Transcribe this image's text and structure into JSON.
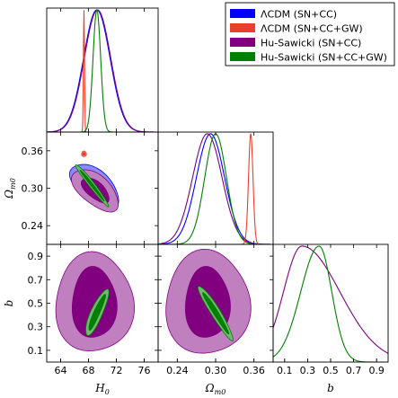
{
  "chart_data": {
    "type": "corner-plot",
    "legend": [
      {
        "label": "ΛCDM (SN+CC)",
        "color": "#0000ff"
      },
      {
        "label": "ΛCDM (SN+CC+GW)",
        "color": "#e8402a"
      },
      {
        "label": "Hu-Sawicki (SN+CC)",
        "color": "#800080"
      },
      {
        "label": "Hu-Sawicki (SN+CC+GW)",
        "color": "#008000"
      }
    ],
    "parameters": [
      {
        "name": "H0",
        "label_main": "H",
        "label_sub": "0",
        "range": [
          62,
          78
        ],
        "ticks": [
          64,
          68,
          72,
          76
        ]
      },
      {
        "name": "Omega_m0",
        "label_main": "Ω",
        "label_sub": "m0",
        "range": [
          0.21,
          0.39
        ],
        "ticks": [
          0.24,
          0.3,
          0.36
        ],
        "tick_labels": [
          "0.24",
          "0.30",
          "0.36"
        ]
      },
      {
        "name": "b",
        "label_main": "b",
        "label_sub": "",
        "range": [
          0.0,
          1.0
        ],
        "ticks": [
          0.1,
          0.3,
          0.5,
          0.7,
          0.9
        ],
        "tick_labels": [
          "0.1",
          "0.3",
          "0.5",
          "0.7",
          "0.9"
        ]
      }
    ],
    "marginals": {
      "H0": [
        {
          "series": "ΛCDM (SN+CC)",
          "color": "#0000ff",
          "mean": 69.2,
          "sigma": 1.9
        },
        {
          "series": "Hu-Sawicki (SN+CC)",
          "color": "#800080",
          "mean": 69.3,
          "sigma": 1.9
        },
        {
          "series": "ΛCDM (SN+CC+GW)",
          "color": "#e8402a",
          "mean": 67.35,
          "sigma": 0.08
        },
        {
          "series": "Hu-Sawicki (SN+CC+GW)",
          "color": "#008000",
          "mean": 69.2,
          "sigma": 0.55
        }
      ],
      "Omega_m0": [
        {
          "series": "ΛCDM (SN+CC)",
          "color": "#0000ff",
          "mean": 0.292,
          "sigma": 0.022
        },
        {
          "series": "Hu-Sawicki (SN+CC)",
          "color": "#800080",
          "mean": 0.287,
          "sigma": 0.023
        },
        {
          "series": "Hu-Sawicki (SN+CC+GW)",
          "color": "#008000",
          "mean": 0.3,
          "sigma": 0.017
        },
        {
          "series": "ΛCDM (SN+CC+GW)",
          "color": "#e8402a",
          "mean": 0.355,
          "sigma": 0.0035
        }
      ],
      "b": [
        {
          "series": "Hu-Sawicki (SN+CC)",
          "color": "#800080",
          "mode": 0.25,
          "sigma_left": 0.16,
          "sigma_right": 0.33
        },
        {
          "series": "Hu-Sawicki (SN+CC+GW)",
          "color": "#008000",
          "mode": 0.4,
          "sigma_left": 0.16,
          "sigma_right": 0.11
        }
      ]
    },
    "contours": {
      "H0_Omega_m0": [
        {
          "series": "ΛCDM (SN+CC)",
          "color": "#0000ff",
          "center": [
            68.9,
            0.304
          ],
          "outer": {
            "a": 4.2,
            "b": 0.024,
            "angle_deg": -40
          },
          "inner": {
            "a": 2.6,
            "b": 0.014,
            "angle_deg": -40
          }
        },
        {
          "series": "Hu-Sawicki (SN+CC)",
          "color": "#800080",
          "center": [
            69.0,
            0.297
          ],
          "outer": {
            "a": 4.0,
            "b": 0.023,
            "angle_deg": -40
          },
          "inner": {
            "a": 2.4,
            "b": 0.013,
            "angle_deg": -40
          }
        },
        {
          "series": "Hu-Sawicki (SN+CC+GW)",
          "color": "#008000",
          "center": [
            68.5,
            0.305
          ],
          "outer": {
            "a": 3.8,
            "b": 0.0045,
            "angle_deg": -52
          },
          "inner": {
            "a": 2.8,
            "b": 0.002,
            "angle_deg": -52
          }
        },
        {
          "series": "ΛCDM (SN+CC+GW)",
          "color": "#e8402a",
          "center": [
            67.35,
            0.355
          ],
          "outer": {
            "a": 0.35,
            "b": 0.0045,
            "angle_deg": 0
          },
          "inner": {
            "a": 0.2,
            "b": 0.0025,
            "angle_deg": 0
          }
        }
      ],
      "H0_b": [
        {
          "series": "Hu-Sawicki (SN+CC)",
          "color": "#800080",
          "center": [
            68.8,
            0.5
          ],
          "outer": {
            "a": 5.6,
            "b": 0.42,
            "angle_deg": 0
          },
          "inner": {
            "a": 3.2,
            "b": 0.3,
            "angle_deg": 0
          }
        },
        {
          "series": "Hu-Sawicki (SN+CC+GW)",
          "color": "#008000",
          "center": [
            69.2,
            0.42
          ],
          "outer": {
            "a": 3.6,
            "b": 0.05,
            "angle_deg": 66
          },
          "inner": {
            "a": 2.8,
            "b": 0.025,
            "angle_deg": 66
          }
        }
      ],
      "Omega_m0_b": [
        {
          "series": "Hu-Sawicki (SN+CC)",
          "color": "#800080",
          "center": [
            0.287,
            0.5
          ],
          "outer": {
            "a": 0.066,
            "b": 0.44,
            "angle_deg": 0
          },
          "inner": {
            "a": 0.035,
            "b": 0.3,
            "angle_deg": 0
          }
        },
        {
          "series": "Hu-Sawicki (SN+CC+GW)",
          "color": "#008000",
          "center": [
            0.3,
            0.42
          ],
          "outer": {
            "a": 0.05,
            "b": 0.04,
            "angle_deg": -58
          },
          "inner": {
            "a": 0.038,
            "b": 0.02,
            "angle_deg": -58
          }
        }
      ]
    }
  }
}
